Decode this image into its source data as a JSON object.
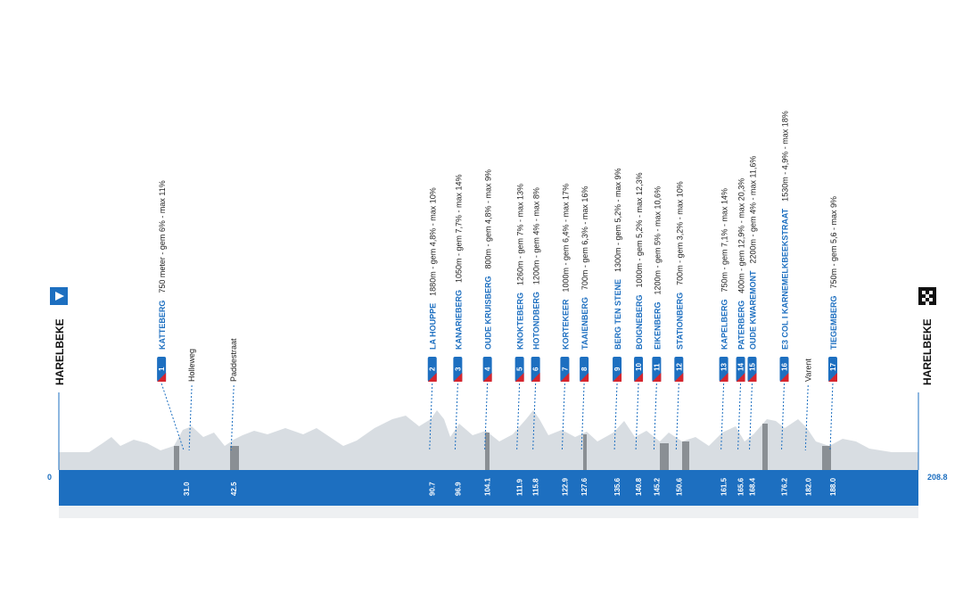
{
  "start": {
    "name": "HARELBEKE"
  },
  "finish": {
    "name": "HARELBEKE"
  },
  "axis": {
    "start": 0,
    "end": 208.8
  },
  "stations": [
    {
      "km": {
        "value": 31.0,
        "label": "31.0"
      },
      "climbs": [
        {
          "number": "1",
          "name": "KATTEBERG",
          "detail": "750 meter  -  gem 6% - max 11%"
        }
      ],
      "sectors": [
        "Holleweg"
      ]
    },
    {
      "km": {
        "value": 42.5,
        "label": "42.5"
      },
      "climbs": [],
      "sectors": [
        "Paddestraat"
      ]
    },
    {
      "km": {
        "value": 90.7,
        "label": "90.7"
      },
      "climbs": [
        {
          "number": "2",
          "name": "LA HOUPPE",
          "detail": "1880m  -  gem 4,8% - max 10%"
        }
      ],
      "sectors": []
    },
    {
      "km": {
        "value": 96.9,
        "label": "96.9"
      },
      "climbs": [
        {
          "number": "3",
          "name": "KANARIEBERG",
          "detail": "1050m  -  gem 7,7% - max 14%"
        }
      ],
      "sectors": []
    },
    {
      "km": {
        "value": 104.1,
        "label": "104.1"
      },
      "climbs": [
        {
          "number": "4",
          "name": "OUDE KRUISBERG",
          "detail": "800m  -  gem 4,8% - max 9%"
        }
      ],
      "sectors": []
    },
    {
      "km": {
        "value": 111.9,
        "label": "111.9"
      },
      "climbs": [
        {
          "number": "5",
          "name": "KNOKTEBERG",
          "detail": "1260m  -  gem 7% - max 13%"
        }
      ],
      "sectors": []
    },
    {
      "km": {
        "value": 115.8,
        "label": "115.8"
      },
      "climbs": [
        {
          "number": "6",
          "name": "HOTONDBERG",
          "detail": "1200m  -  gem 4% - max 8%"
        }
      ],
      "sectors": []
    },
    {
      "km": {
        "value": 122.9,
        "label": "122.9"
      },
      "climbs": [
        {
          "number": "7",
          "name": "KORTEKEER",
          "detail": "1000m  -  gem 6,4% - max 17%"
        }
      ],
      "sectors": []
    },
    {
      "km": {
        "value": 127.6,
        "label": "127.6"
      },
      "climbs": [
        {
          "number": "8",
          "name": "TAAIENBERG",
          "detail": "700m  -  gem 6,3% - max 16%"
        }
      ],
      "sectors": []
    },
    {
      "km": {
        "value": 135.6,
        "label": "135.6"
      },
      "climbs": [
        {
          "number": "9",
          "name": "BERG TEN STENE",
          "detail": "1300m  -  gem 5,2% - max 9%"
        }
      ],
      "sectors": []
    },
    {
      "km": {
        "value": 140.8,
        "label": "140.8"
      },
      "climbs": [
        {
          "number": "10",
          "name": "BOIGNEBERG",
          "detail": "1000m  -  gem 5,2% - max 12,3%"
        }
      ],
      "sectors": []
    },
    {
      "km": {
        "value": 145.2,
        "label": "145.2"
      },
      "climbs": [
        {
          "number": "11",
          "name": "EIKENBERG",
          "detail": "1200m  -  gem 5% - max 10,6%"
        }
      ],
      "sectors": []
    },
    {
      "km": {
        "value": 150.6,
        "label": "150.6"
      },
      "climbs": [
        {
          "number": "12",
          "name": "STATIONBERG",
          "detail": "700m  -  gem 3,2% - max 10%"
        }
      ],
      "sectors": []
    },
    {
      "km": {
        "value": 161.5,
        "label": "161.5"
      },
      "climbs": [
        {
          "number": "13",
          "name": "KAPELBERG",
          "detail": "750m  -  gem 7,1% - max 14%"
        }
      ],
      "sectors": []
    },
    {
      "km": {
        "value": 165.6,
        "label": "165.6"
      },
      "climbs": [
        {
          "number": "14",
          "name": "PATERBERG",
          "detail": "400m  -  gem 12,9% - max 20,3%"
        }
      ],
      "sectors": []
    },
    {
      "km": {
        "value": 168.4,
        "label": "168.4"
      },
      "climbs": [
        {
          "number": "15",
          "name": "OUDE KWAREMONT",
          "detail": "2200m  -  gem 4% - max 11,6%"
        }
      ],
      "sectors": []
    },
    {
      "km": {
        "value": 176.2,
        "label": "176.2"
      },
      "climbs": [
        {
          "number": "16",
          "name": "E3 COL I KARNEMELKBEEKSTRAAT",
          "detail": "1530m  -  4,9% - max 18%"
        }
      ],
      "sectors": []
    },
    {
      "km": {
        "value": 182.0,
        "label": "182.0"
      },
      "climbs": [],
      "sectors": [
        "Varent"
      ]
    },
    {
      "km": {
        "value": 188.0,
        "label": "188.0"
      },
      "climbs": [
        {
          "number": "17",
          "name": "TIEGEMBERG",
          "detail": "750m  -  gem 5,6 - max 9%"
        }
      ],
      "sectors": []
    }
  ]
}
